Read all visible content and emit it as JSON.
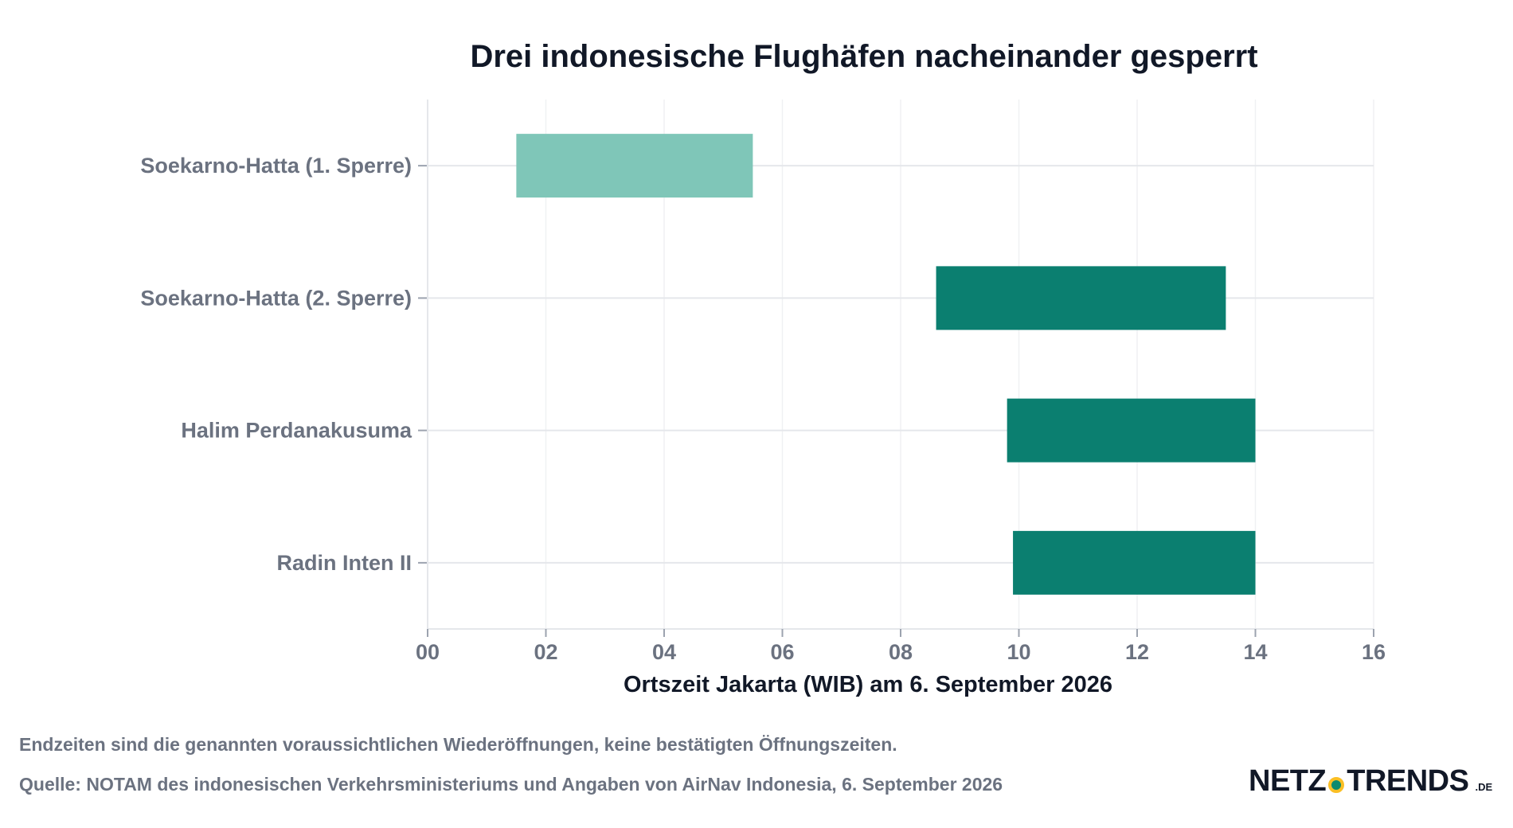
{
  "chart_data": {
    "type": "bar",
    "orientation": "horizontal-range",
    "title": "Drei indonesische Flughäfen nacheinander gesperrt",
    "xlabel": "Ortszeit Jakarta (WIB) am 6. September 2026",
    "ylabel": "",
    "xlim": [
      0,
      16
    ],
    "xticks": [
      0,
      2,
      4,
      6,
      8,
      10,
      12,
      14,
      16
    ],
    "xtick_labels": [
      "00",
      "02",
      "04",
      "06",
      "08",
      "10",
      "12",
      "14",
      "16"
    ],
    "grid": true,
    "bars": [
      {
        "label": "Soekarno-Hatta (1. Sperre)",
        "start": 1.5,
        "end": 5.5,
        "color": "#7fc6b8"
      },
      {
        "label": "Soekarno-Hatta (2. Sperre)",
        "start": 8.6,
        "end": 13.5,
        "color": "#0b7f70"
      },
      {
        "label": "Halim Perdanakusuma",
        "start": 9.8,
        "end": 14.0,
        "color": "#0b7f70"
      },
      {
        "label": "Radin Inten II",
        "start": 9.9,
        "end": 14.0,
        "color": "#0b7f70"
      }
    ]
  },
  "footer": {
    "note": "Endzeiten sind die genannten voraussichtlichen Wiederöffnungen, keine bestätigten Öffnungszeiten.",
    "source": "Quelle: NOTAM des indonesischen Verkehrsministeriums und Angaben von AirNav Indonesia, 6. September 2026"
  },
  "logo": {
    "left": "NETZ",
    "right": "TRENDS",
    "tld": ".DE",
    "dot_color": "#0b8a6e",
    "ring_color": "#fbbf24"
  }
}
